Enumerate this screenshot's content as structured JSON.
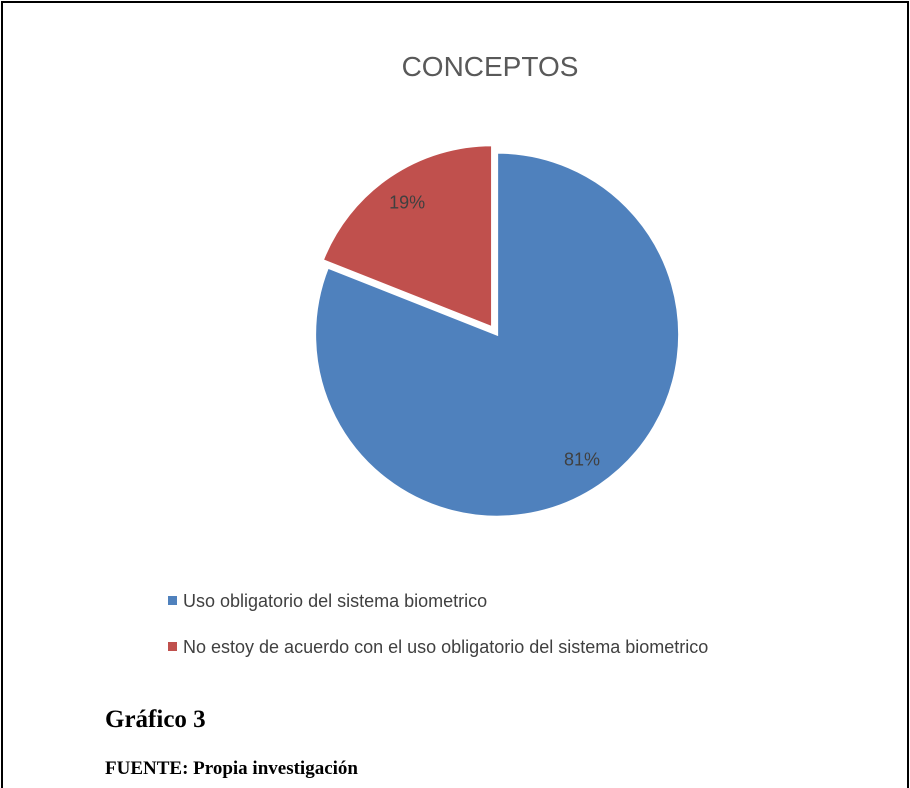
{
  "chart_data": {
    "type": "pie",
    "title": "CONCEPTOS",
    "categories": [
      "Uso obligatorio del sistema biometrico",
      "No estoy de acuerdo con el uso obligatorio del sistema biometrico"
    ],
    "values": [
      81,
      19
    ],
    "value_labels": [
      "81%",
      "19%"
    ],
    "colors": [
      "#4f81bd",
      "#c0504d"
    ],
    "legend": "bottom"
  },
  "caption": {
    "label": "Gráfico 3",
    "source": "FUENTE: Propia investigación"
  }
}
